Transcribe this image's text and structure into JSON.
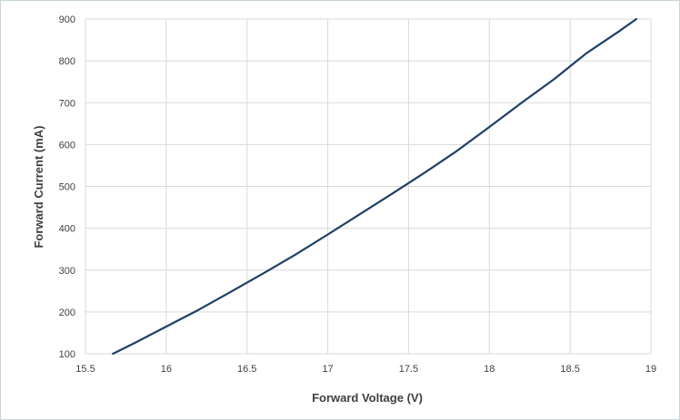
{
  "chart_data": {
    "type": "line",
    "xlabel": "Forward Voltage (V)",
    "ylabel": "Forward Current (mA)",
    "xlim": [
      15.5,
      19
    ],
    "ylim": [
      100,
      900
    ],
    "x_ticks": [
      "15.5",
      "16",
      "16.5",
      "17",
      "17.5",
      "18",
      "18.5",
      "19"
    ],
    "y_ticks": [
      "100",
      "200",
      "300",
      "400",
      "500",
      "600",
      "700",
      "800",
      "900"
    ],
    "grid": true,
    "legend": "none",
    "series": [
      {
        "color": "#1f3f66",
        "x": [
          15.67,
          15.8,
          16.0,
          16.2,
          16.4,
          16.6,
          16.8,
          17.0,
          17.2,
          17.4,
          17.6,
          17.8,
          18.0,
          18.2,
          18.4,
          18.6,
          18.8,
          18.91
        ],
        "y": [
          100,
          125,
          165,
          205,
          248,
          292,
          337,
          385,
          434,
          483,
          533,
          585,
          642,
          700,
          756,
          818,
          870,
          900
        ]
      }
    ]
  }
}
